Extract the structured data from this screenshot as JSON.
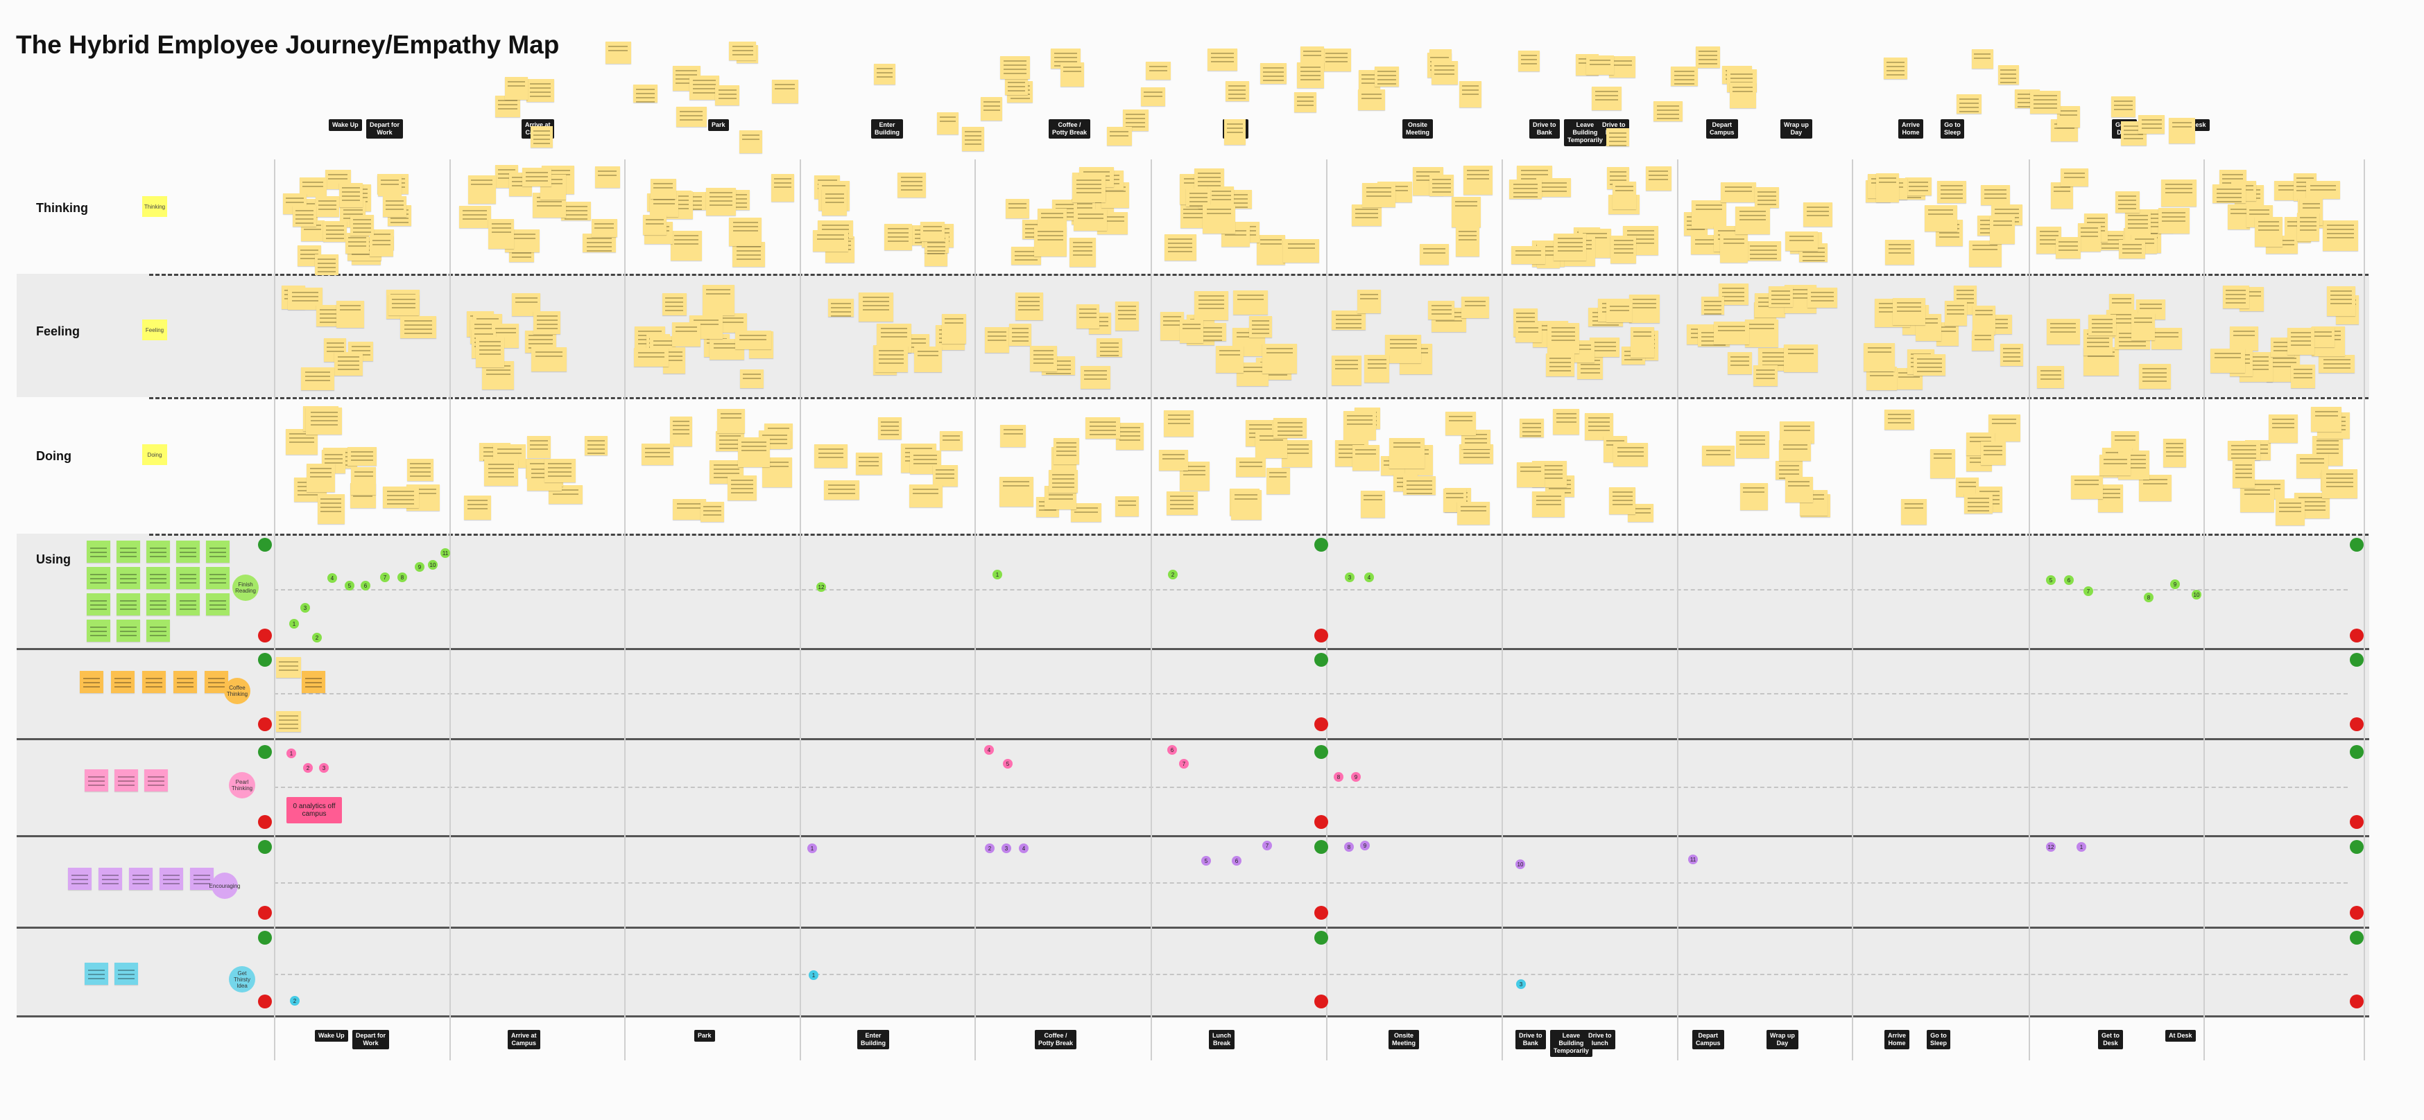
{
  "title": "The Hybrid Employee Journey/Empathy Map",
  "rows": [
    {
      "key": "thinking",
      "label": "Thinking",
      "tag": "Thinking"
    },
    {
      "key": "feeling",
      "label": "Feeling",
      "tag": "Feeling"
    },
    {
      "key": "doing",
      "label": "Doing",
      "tag": "Doing"
    },
    {
      "key": "using",
      "label": "Using",
      "tag": ""
    }
  ],
  "stages": [
    "Wake Up",
    "Depart for\nWork",
    "Arrive at\nCampus",
    "Park",
    "Enter\nBuilding",
    "Coffee /\nPotty Break",
    "Lunch\nBreak",
    "Onsite\nMeeting",
    "Drive to\nBank",
    "Leave\nBuilding\nTemporarily",
    "Drive to\nlunch",
    "Depart\nCampus",
    "Wrap up\nDay",
    "Arrive\nHome",
    "Go to\nSleep",
    "Get to\nDesk",
    "At Desk"
  ],
  "lane_bubbles": [
    "Finish Reading",
    "Coffee Thinking",
    "Pearl Thinking",
    "Encouraging",
    "Get Thirsty Idea"
  ],
  "callout": "0 analytics off\ncampus",
  "dot_labels": [
    "1",
    "2",
    "3",
    "4",
    "5",
    "6",
    "7",
    "8",
    "9",
    "10",
    "11",
    "12"
  ],
  "colors": {
    "sticky": "#fde28a",
    "green_card": "#a5e867",
    "orange_card": "#fcc04e",
    "pink_card": "#ff9ccc",
    "purple_card": "#d9a6f3",
    "blue_card": "#74d6ea"
  }
}
